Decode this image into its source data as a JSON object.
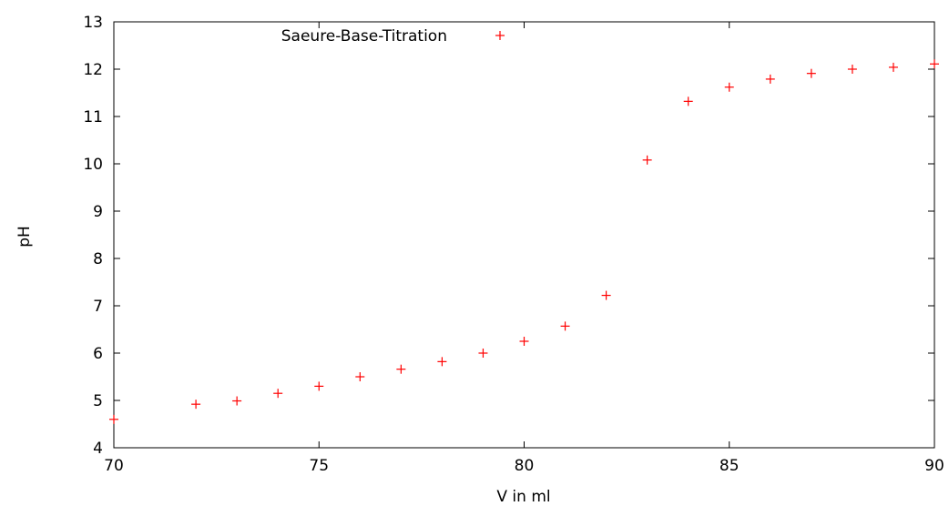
{
  "chart_data": {
    "type": "scatter",
    "title": "",
    "xlabel": "V in ml",
    "ylabel": "pH",
    "xlim": [
      70,
      90
    ],
    "ylim": [
      4,
      13
    ],
    "xticks": [
      70,
      75,
      80,
      85,
      90
    ],
    "yticks": [
      4,
      5,
      6,
      7,
      8,
      9,
      10,
      11,
      12,
      13
    ],
    "grid": false,
    "legend_position": "top-center",
    "marker": "plus",
    "series": [
      {
        "name": "Saeure-Base-Titration",
        "color": "#ff0000",
        "points": [
          {
            "x": 70,
            "y": 4.6
          },
          {
            "x": 72,
            "y": 4.92
          },
          {
            "x": 73,
            "y": 4.99
          },
          {
            "x": 74,
            "y": 5.15
          },
          {
            "x": 75,
            "y": 5.3
          },
          {
            "x": 76,
            "y": 5.5
          },
          {
            "x": 77,
            "y": 5.66
          },
          {
            "x": 78,
            "y": 5.82
          },
          {
            "x": 79,
            "y": 6.0
          },
          {
            "x": 80,
            "y": 6.25
          },
          {
            "x": 81,
            "y": 6.57
          },
          {
            "x": 82,
            "y": 7.22
          },
          {
            "x": 83,
            "y": 10.08
          },
          {
            "x": 84,
            "y": 11.32
          },
          {
            "x": 85,
            "y": 11.62
          },
          {
            "x": 86,
            "y": 11.79
          },
          {
            "x": 87,
            "y": 11.91
          },
          {
            "x": 88,
            "y": 12.0
          },
          {
            "x": 89,
            "y": 12.04
          },
          {
            "x": 90,
            "y": 12.11
          }
        ]
      }
    ]
  }
}
